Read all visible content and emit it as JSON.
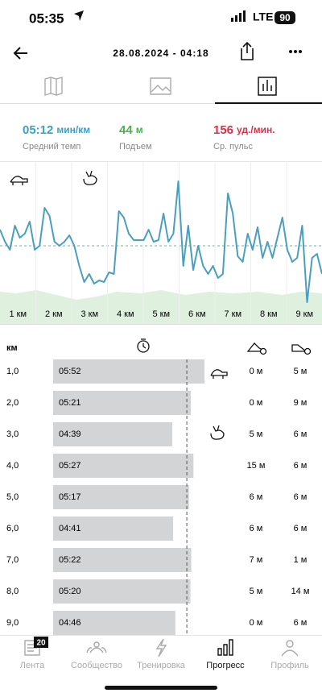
{
  "status_bar": {
    "time": "05:35",
    "network": "LTE",
    "battery": "90"
  },
  "header": {
    "title": "28.08.2024 - 04:18"
  },
  "stats": [
    {
      "value": "05:12",
      "unit": "мин/км",
      "label": "Средний темп",
      "color": "#3aa0c8"
    },
    {
      "value": "44",
      "unit": "м",
      "label": "Подъем",
      "color": "#4bb04f"
    },
    {
      "value": "156",
      "unit": "уд./мин.",
      "label": "Ср. пульс",
      "color": "#d0334a"
    }
  ],
  "pace_chart": {
    "type": "line",
    "color": "#4a9fbf",
    "ylim": [
      0,
      180
    ],
    "x_labels": [
      "1 км",
      "2 км",
      "3 км",
      "4 км",
      "5 км",
      "6 км",
      "7 км",
      "8 км",
      "9 км"
    ],
    "values": [
      95,
      80,
      70,
      100,
      85,
      90,
      105,
      70,
      75,
      122,
      112,
      80,
      75,
      80,
      88,
      75,
      50,
      30,
      40,
      28,
      32,
      30,
      42,
      40,
      118,
      110,
      90,
      82,
      82,
      82,
      95,
      80,
      82,
      115,
      80,
      90,
      155,
      50,
      100,
      45,
      75,
      50,
      40,
      50,
      35,
      40,
      140,
      115,
      62,
      55,
      90,
      70,
      98,
      60,
      80,
      60,
      85,
      110,
      70,
      55,
      60,
      100,
      5,
      60,
      65,
      40
    ]
  },
  "table": {
    "header": "км",
    "rows": [
      [
        "1,0",
        "05:52",
        "0 м",
        "5 м"
      ],
      [
        "2,0",
        "05:21",
        "0 м",
        "9 м"
      ],
      [
        "3,0",
        "04:39",
        "5 м",
        "6 м"
      ],
      [
        "4,0",
        "05:27",
        "15 м",
        "6 м"
      ],
      [
        "5,0",
        "05:17",
        "6 м",
        "6 м"
      ],
      [
        "6,0",
        "04:41",
        "6 м",
        "6 м"
      ],
      [
        "7,0",
        "05:22",
        "7 м",
        "1 м"
      ],
      [
        "8,0",
        "05:20",
        "5 м",
        "14 м"
      ],
      [
        "9,0",
        "04:46",
        "0 м",
        "6 м"
      ]
    ]
  },
  "nav": {
    "badge": "20",
    "items": [
      "Лента",
      "Сообщество",
      "Тренировка",
      "Прогресс",
      "Профиль"
    ],
    "active": 3
  }
}
